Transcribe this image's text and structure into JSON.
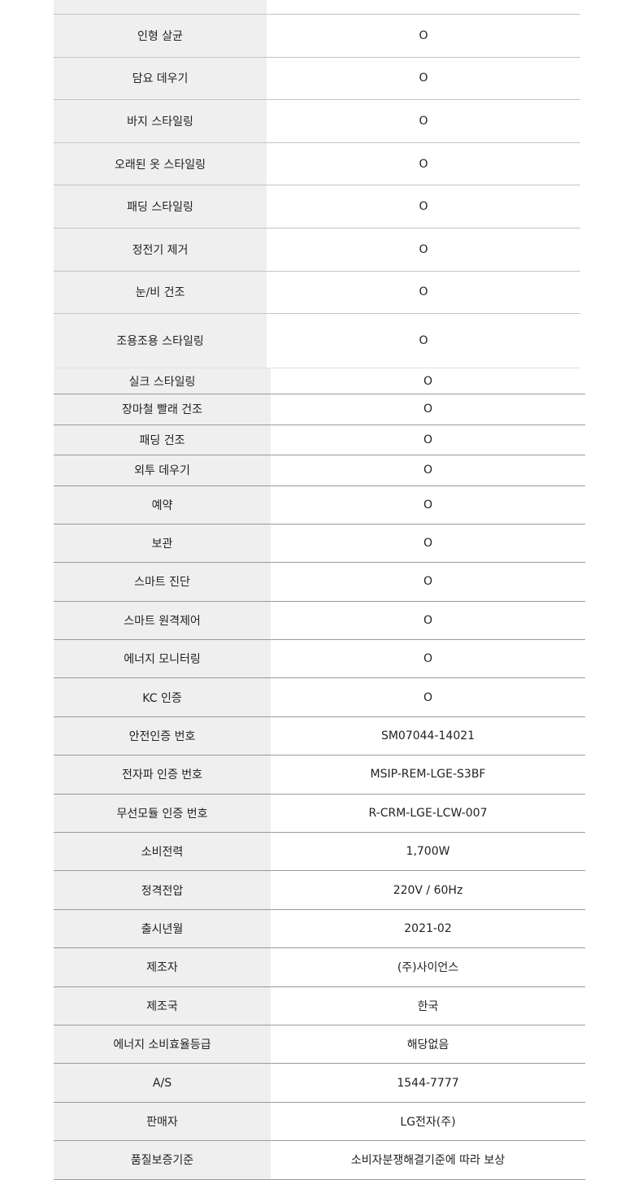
{
  "table1": [
    {
      "label": "",
      "value": ""
    },
    {
      "label": "인형 살균",
      "value": "O"
    },
    {
      "label": "담요 데우기",
      "value": "O"
    },
    {
      "label": "바지 스타일링",
      "value": "O"
    },
    {
      "label": "오래된 옷 스타일링",
      "value": "O"
    },
    {
      "label": "패딩 스타일링",
      "value": "O"
    },
    {
      "label": "정전기 제거",
      "value": "O"
    },
    {
      "label": "눈/비 건조",
      "value": "O"
    },
    {
      "label": "조용조용 스타일링",
      "value": "O"
    }
  ],
  "table2": [
    {
      "label": "실크 스타일링",
      "value": "O"
    },
    {
      "label": "장마철 빨래 건조",
      "value": "O"
    },
    {
      "label": "패딩 건조",
      "value": "O"
    },
    {
      "label": "외투 데우기",
      "value": "O"
    },
    {
      "label": "예약",
      "value": "O"
    },
    {
      "label": "보관",
      "value": "O"
    },
    {
      "label": "스마트 진단",
      "value": "O"
    },
    {
      "label": "스마트 원격제어",
      "value": "O"
    },
    {
      "label": "에너지 모니터링",
      "value": "O"
    },
    {
      "label": "KC 인증",
      "value": "O"
    },
    {
      "label": "안전인증 번호",
      "value": "SM07044-14021"
    },
    {
      "label": "전자파 인증 번호",
      "value": "MSIP-REM-LGE-S3BF"
    },
    {
      "label": "무선모듈 인증 번호",
      "value": "R-CRM-LGE-LCW-007"
    },
    {
      "label": "소비전력",
      "value": "1,700W"
    },
    {
      "label": "정격전압",
      "value": "220V / 60Hz"
    },
    {
      "label": "출시년월",
      "value": "2021-02"
    },
    {
      "label": "제조자",
      "value": "(주)사이언스"
    },
    {
      "label": "제조국",
      "value": "한국"
    },
    {
      "label": "에너지 소비효율등급",
      "value": "해당없음"
    },
    {
      "label": "A/S",
      "value": "1544-7777"
    },
    {
      "label": "판매자",
      "value": "LG전자(주)"
    },
    {
      "label": "품질보증기준",
      "value": "소비자분쟁해결기준에 따라 보상"
    }
  ]
}
